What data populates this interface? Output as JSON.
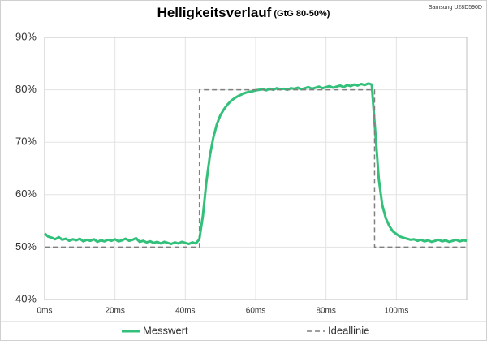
{
  "chart_data": {
    "type": "line",
    "title": "Helligkeitsverlauf",
    "subtitle": "(GtG 80-50%)",
    "annotation": "Samsung U28D590D",
    "xlim": [
      0,
      120
    ],
    "xticks": [
      {
        "value": 0,
        "label": "0ms"
      },
      {
        "value": 20,
        "label": "20ms"
      },
      {
        "value": 40,
        "label": "40ms"
      },
      {
        "value": 60,
        "label": "60ms"
      },
      {
        "value": 80,
        "label": "80ms"
      },
      {
        "value": 100,
        "label": "100ms"
      }
    ],
    "ylim": [
      40,
      90
    ],
    "yticks": [
      {
        "value": 40,
        "label": "40%"
      },
      {
        "value": 50,
        "label": "50%"
      },
      {
        "value": 60,
        "label": "60%"
      },
      {
        "value": 70,
        "label": "70%"
      },
      {
        "value": 80,
        "label": "80%"
      },
      {
        "value": 90,
        "label": "90%"
      }
    ],
    "grid": true,
    "legend": "bottom",
    "series": [
      {
        "name": "Messwert",
        "color": "#33c07a",
        "line_style": "solid",
        "x": [
          0,
          1,
          2,
          3,
          4,
          5,
          6,
          7,
          8,
          9,
          10,
          11,
          12,
          13,
          14,
          15,
          16,
          17,
          18,
          19,
          20,
          21,
          22,
          23,
          24,
          25,
          26,
          27,
          28,
          29,
          30,
          31,
          32,
          33,
          34,
          35,
          36,
          37,
          38,
          39,
          40,
          41,
          42,
          43,
          44,
          45,
          46,
          47,
          48,
          49,
          50,
          51,
          52,
          53,
          54,
          55,
          56,
          57,
          58,
          59,
          60,
          61,
          62,
          63,
          64,
          65,
          66,
          67,
          68,
          69,
          70,
          71,
          72,
          73,
          74,
          75,
          76,
          77,
          78,
          79,
          80,
          81,
          82,
          83,
          84,
          85,
          86,
          87,
          88,
          89,
          90,
          91,
          92,
          93,
          94,
          95,
          96,
          97,
          98,
          99,
          100,
          101,
          102,
          103,
          104,
          105,
          106,
          107,
          108,
          109,
          110,
          111,
          112,
          113,
          114,
          115,
          116,
          117,
          118,
          119,
          120
        ],
        "values": [
          52.6,
          52.0,
          51.8,
          51.5,
          51.9,
          51.4,
          51.6,
          51.2,
          51.5,
          51.3,
          51.6,
          51.1,
          51.4,
          51.2,
          51.5,
          51.0,
          51.3,
          51.1,
          51.4,
          51.2,
          51.5,
          51.1,
          51.3,
          51.6,
          51.2,
          51.4,
          51.7,
          51.0,
          51.2,
          50.9,
          51.1,
          50.8,
          51.0,
          50.7,
          51.0,
          50.8,
          50.6,
          50.9,
          50.7,
          51.0,
          50.8,
          50.6,
          50.9,
          50.7,
          51.5,
          56,
          62.5,
          67.5,
          71,
          73.5,
          75.2,
          76.3,
          77.2,
          77.9,
          78.4,
          78.8,
          79.1,
          79.4,
          79.6,
          79.7,
          79.9,
          80.0,
          80.1,
          79.9,
          80.2,
          80.0,
          80.3,
          80.1,
          80.2,
          80.0,
          80.3,
          80.2,
          80.4,
          80.1,
          80.3,
          80.5,
          80.2,
          80.4,
          80.6,
          80.3,
          80.5,
          80.7,
          80.4,
          80.6,
          80.8,
          80.5,
          80.9,
          80.7,
          81.0,
          80.8,
          81.1,
          80.9,
          81.2,
          81.0,
          72,
          63,
          58,
          55.5,
          54,
          53,
          52.5,
          52.0,
          51.8,
          51.6,
          51.4,
          51.5,
          51.2,
          51.4,
          51.1,
          51.3,
          51.0,
          51.2,
          51.4,
          51.1,
          51.3,
          51.0,
          51.2,
          51.4,
          51.1,
          51.3,
          51.2
        ]
      },
      {
        "name": "Ideallinie",
        "color": "#808080",
        "line_style": "dashed",
        "x": [
          0,
          44,
          44,
          93.8,
          93.8,
          120
        ],
        "values": [
          50,
          50,
          80,
          80,
          50,
          50
        ]
      }
    ]
  }
}
